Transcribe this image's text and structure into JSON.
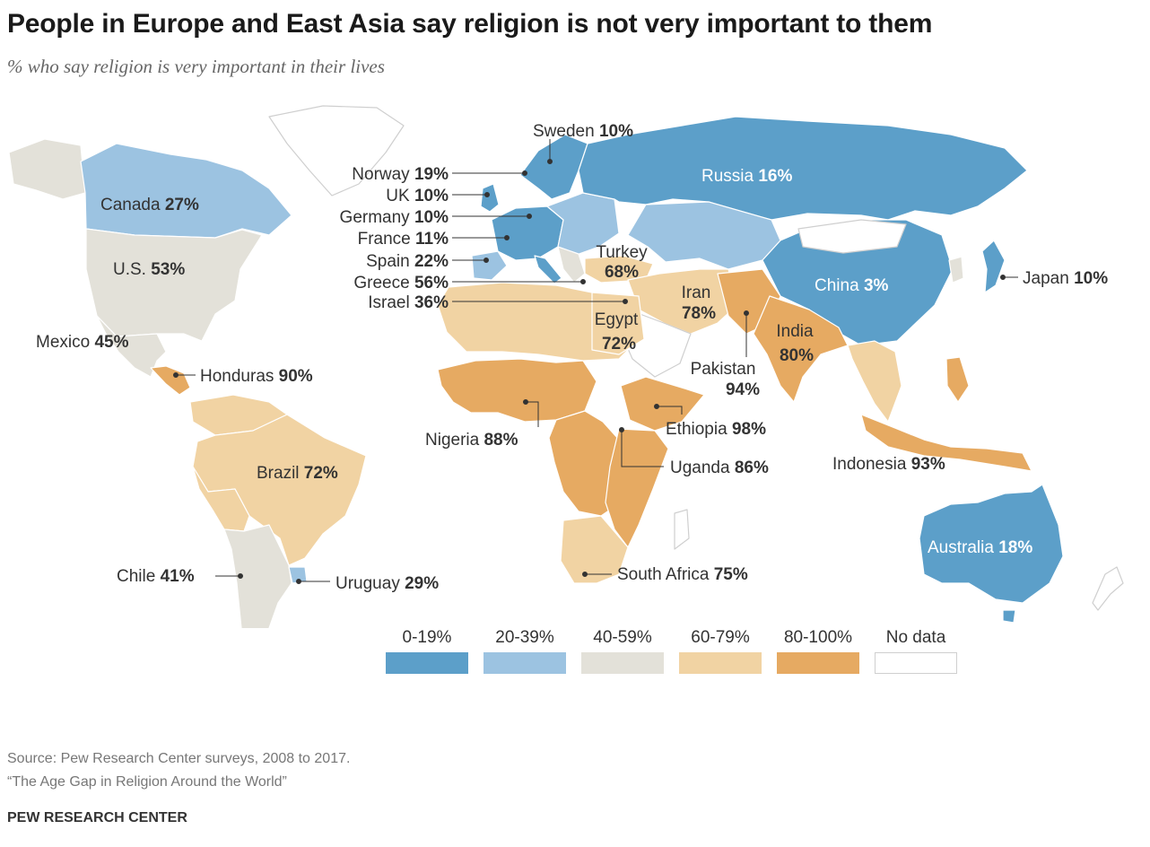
{
  "title": "People in Europe and East Asia say religion is not very important to them",
  "subtitle": "% who say religion is very important in their lives",
  "colors": {
    "c0": "#5c9fc9",
    "c1": "#9cc3e1",
    "c2": "#e3e1d9",
    "c3": "#f1d3a3",
    "c4": "#e6aa62",
    "nd": "#ffffff",
    "outline": "#cfcfcf"
  },
  "legend": [
    {
      "label": "0-19%",
      "color": "#5c9fc9"
    },
    {
      "label": "20-39%",
      "color": "#9cc3e1"
    },
    {
      "label": "40-59%",
      "color": "#e3e1d9"
    },
    {
      "label": "60-79%",
      "color": "#f1d3a3"
    },
    {
      "label": "80-100%",
      "color": "#e6aa62"
    },
    {
      "label": "No data",
      "color": "#ffffff"
    }
  ],
  "labels": {
    "sweden": {
      "name": "Sweden",
      "value": "10%"
    },
    "norway": {
      "name": "Norway",
      "value": "19%"
    },
    "uk": {
      "name": "UK",
      "value": "10%"
    },
    "germany": {
      "name": "Germany",
      "value": "10%"
    },
    "france": {
      "name": "France",
      "value": "11%"
    },
    "spain": {
      "name": "Spain",
      "value": "22%"
    },
    "greece": {
      "name": "Greece",
      "value": "56%"
    },
    "israel": {
      "name": "Israel",
      "value": "36%"
    },
    "russia": {
      "name": "Russia",
      "value": "16%"
    },
    "canada": {
      "name": "Canada",
      "value": "27%"
    },
    "us": {
      "name": "U.S.",
      "value": "53%"
    },
    "mexico": {
      "name": "Mexico",
      "value": "45%"
    },
    "honduras": {
      "name": "Honduras",
      "value": "90%"
    },
    "turkey": {
      "name": "Turkey",
      "value": "68%"
    },
    "iran": {
      "name": "Iran",
      "value": "78%"
    },
    "egypt": {
      "name": "Egypt",
      "value": "72%"
    },
    "china": {
      "name": "China",
      "value": "3%"
    },
    "japan": {
      "name": "Japan",
      "value": "10%"
    },
    "india": {
      "name": "India",
      "value": "80%"
    },
    "pakistan": {
      "name": "Pakistan",
      "value": "94%"
    },
    "nigeria": {
      "name": "Nigeria",
      "value": "88%"
    },
    "ethiopia": {
      "name": "Ethiopia",
      "value": "98%"
    },
    "uganda": {
      "name": "Uganda",
      "value": "86%"
    },
    "indonesia": {
      "name": "Indonesia",
      "value": "93%"
    },
    "brazil": {
      "name": "Brazil",
      "value": "72%"
    },
    "chile": {
      "name": "Chile",
      "value": "41%"
    },
    "uruguay": {
      "name": "Uruguay",
      "value": "29%"
    },
    "south_africa": {
      "name": "South Africa",
      "value": "75%"
    },
    "australia": {
      "name": "Australia",
      "value": "18%"
    }
  },
  "footer": {
    "source": "Source: Pew Research Center surveys, 2008 to 2017.",
    "report": "“The Age Gap in Religion Around the World”",
    "org": "PEW RESEARCH CENTER"
  }
}
